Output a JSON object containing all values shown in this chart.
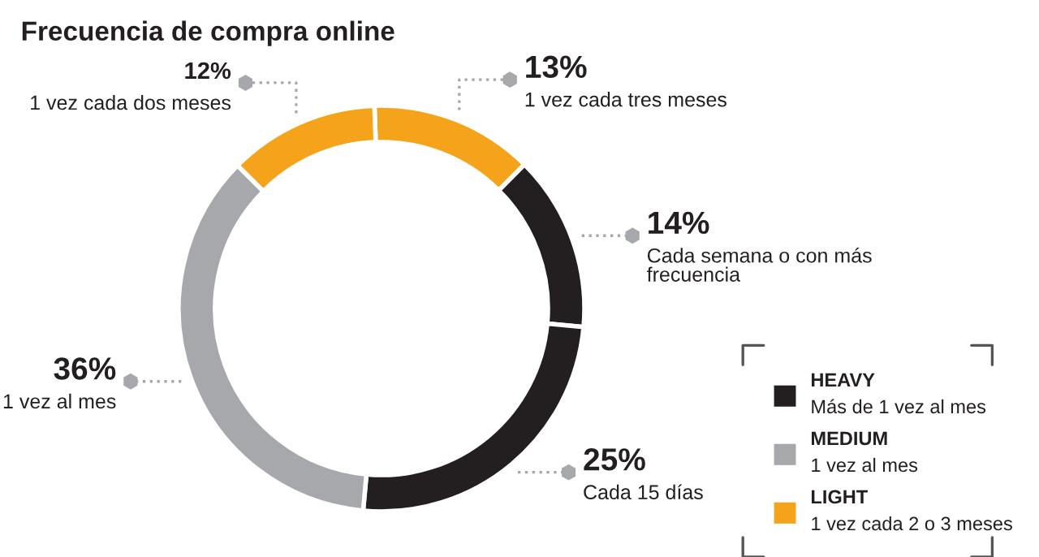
{
  "chart_data": {
    "type": "donut",
    "title": "Frecuencia de compra online",
    "categories": [
      "1 vez cada tres meses",
      "Cada semana o con más frecuencia",
      "Cada 15 días",
      "1 vez al mes",
      "1 vez cada dos meses"
    ],
    "values": [
      13,
      14,
      25,
      36,
      12
    ],
    "colors": [
      "#f5a31a",
      "#231f20",
      "#231f20",
      "#a7a8ab",
      "#f5a31a"
    ],
    "value_labels": [
      "13%",
      "14%",
      "25%",
      "36%",
      "12%"
    ],
    "annotations": [
      "HEAVY\nMás de 1 vez al mes",
      "MEDIUM\n1 vez al mes",
      "LIGHT\n1 vez cada 2 o 3 meses"
    ]
  }
}
